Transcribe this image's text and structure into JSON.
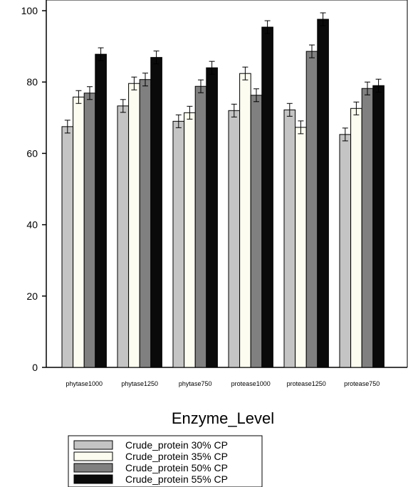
{
  "chart_data": {
    "type": "bar",
    "title": "",
    "xlabel": "Enzyme_Level",
    "ylabel": "",
    "ylim": [
      0,
      103
    ],
    "yticks": [
      0,
      20,
      40,
      60,
      80,
      100
    ],
    "categories": [
      "phytase1000",
      "phytase1250",
      "phytase750",
      "protease1000",
      "protease1250",
      "protease750"
    ],
    "series": [
      {
        "name": "Crude_protein 30% CP",
        "color": "#c4c4c4",
        "values": [
          67.5,
          73.3,
          69.0,
          72.0,
          72.2,
          65.3
        ],
        "errors": [
          1.8,
          1.8,
          1.8,
          1.8,
          1.8,
          1.8
        ]
      },
      {
        "name": "Crude_protein 35% CP",
        "color": "#fcfcf0",
        "values": [
          75.8,
          79.6,
          71.4,
          82.4,
          67.3,
          72.6
        ],
        "errors": [
          1.8,
          1.8,
          1.8,
          1.8,
          1.8,
          1.8
        ]
      },
      {
        "name": "Crude_protein 50% CP",
        "color": "#808080",
        "values": [
          76.9,
          80.7,
          78.8,
          76.3,
          88.6,
          78.2
        ],
        "errors": [
          1.8,
          1.8,
          1.8,
          1.8,
          1.8,
          1.8
        ]
      },
      {
        "name": "Crude_protein 55% CP",
        "color": "#0a0a0a",
        "values": [
          87.8,
          86.9,
          84.0,
          95.4,
          97.6,
          79.0
        ],
        "errors": [
          1.8,
          1.8,
          1.8,
          1.8,
          1.8,
          1.8
        ]
      }
    ],
    "grid": false,
    "legend_position": "bottom-left"
  }
}
